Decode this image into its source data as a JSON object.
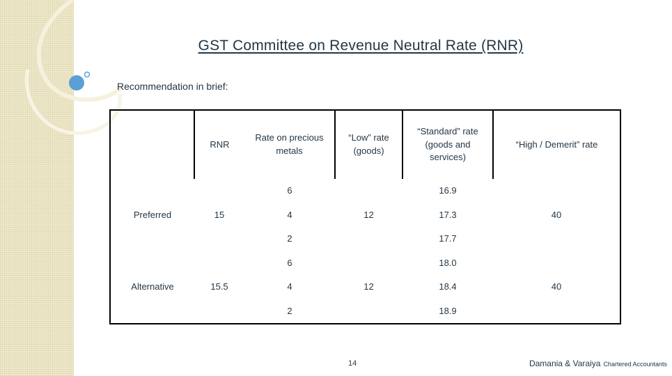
{
  "slide": {
    "title": "GST Committee on Revenue Neutral Rate (RNR)",
    "subtitle": "Recommendation in brief:",
    "page_number": "14",
    "footer": {
      "firm": "Damania & Varaiya",
      "designation": "Chartered Accountants"
    }
  },
  "table": {
    "headers": {
      "blank": "",
      "rnr": "RNR",
      "precious": "Rate on precious metals",
      "low": "“Low” rate (goods)",
      "standard": "“Standard” rate (goods and services)",
      "high": "“High / Demerit” rate"
    },
    "rows": [
      {
        "label": "Preferred",
        "rnr": "15",
        "precious": [
          "6",
          "4",
          "2"
        ],
        "low": "12",
        "standard": [
          "16.9",
          "17.3",
          "17.7"
        ],
        "high": "40"
      },
      {
        "label": "Alternative",
        "rnr": "15.5",
        "precious": [
          "6",
          "4",
          "2"
        ],
        "low": "12",
        "standard": [
          "18.0",
          "18.4",
          "18.9"
        ],
        "high": "40"
      }
    ]
  },
  "colors": {
    "text": "#243746",
    "side_texture": "#efe9cc",
    "bullet": "#5aa0d6"
  }
}
